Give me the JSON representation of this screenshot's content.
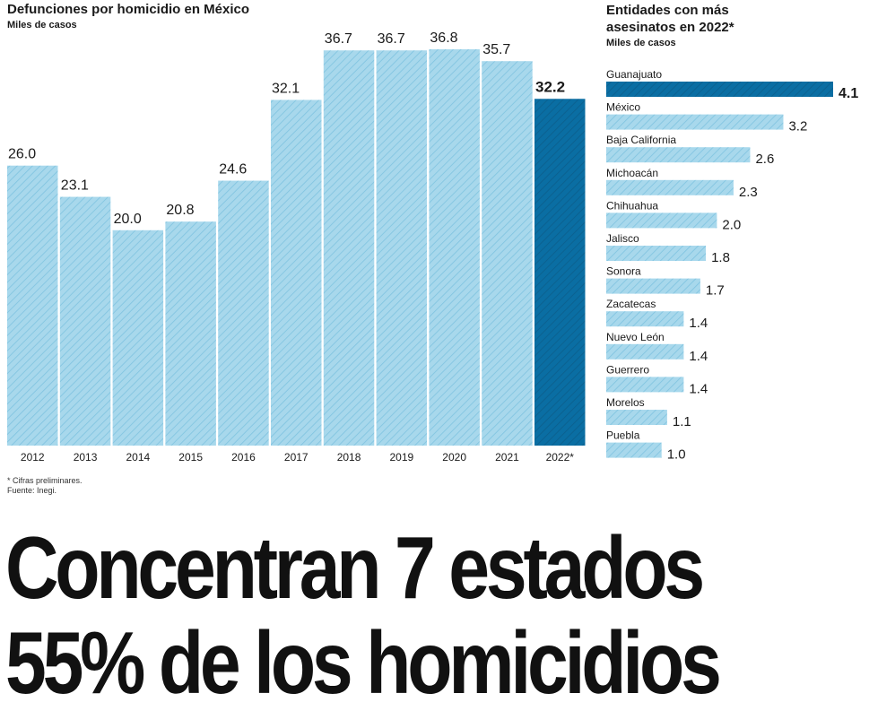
{
  "left_chart": {
    "title": "Defunciones por homicidio en México",
    "subtitle": "Miles de casos"
  },
  "right_chart": {
    "title": "Entidades con más asesinatos en 2022*",
    "subtitle": "Miles de casos"
  },
  "footnotes": {
    "note": "* Cifras preliminares.",
    "source": "Fuente: Inegi."
  },
  "headline": {
    "line1": "Concentran 7 estados",
    "line2": "55% de los homicidios"
  },
  "colors": {
    "light_bar": "#a8d8ec",
    "hatch": "#7fc3e0",
    "highlight_bar": "#0a6ea3",
    "highlight_hatch": "#0b5e8c"
  },
  "chart_data": [
    {
      "type": "bar",
      "categories": [
        "2012",
        "2013",
        "2014",
        "2015",
        "2016",
        "2017",
        "2018",
        "2019",
        "2020",
        "2021",
        "2022*"
      ],
      "values": [
        26.0,
        23.1,
        20.0,
        20.8,
        24.6,
        32.1,
        36.7,
        36.7,
        36.8,
        35.7,
        32.2
      ],
      "value_labels": [
        "26.0",
        "23.1",
        "20.0",
        "20.8",
        "24.6",
        "32.1",
        "36.7",
        "36.7",
        "36.8",
        "35.7",
        "32.2"
      ],
      "highlight_index": 10,
      "title": "Defunciones por homicidio en México",
      "ylabel": "Miles de casos",
      "ylim": [
        0,
        36.8
      ],
      "grid": false
    },
    {
      "type": "bar",
      "orientation": "horizontal",
      "categories": [
        "Guanajuato",
        "México",
        "Baja California",
        "Michoacán",
        "Chihuahua",
        "Jalisco",
        "Sonora",
        "Zacatecas",
        "Nuevo León",
        "Guerrero",
        "Morelos",
        "Puebla"
      ],
      "values": [
        4.1,
        3.2,
        2.6,
        2.3,
        2.0,
        1.8,
        1.7,
        1.4,
        1.4,
        1.4,
        1.1,
        1.0
      ],
      "value_labels": [
        "4.1",
        "3.2",
        "2.6",
        "2.3",
        "2.0",
        "1.8",
        "1.7",
        "1.4",
        "1.4",
        "1.4",
        "1.1",
        "1.0"
      ],
      "highlight_index": 0,
      "title": "Entidades con más asesinatos en 2022*",
      "xlabel": "Miles de casos",
      "xlim": [
        0,
        4.1
      ],
      "grid": false
    }
  ]
}
